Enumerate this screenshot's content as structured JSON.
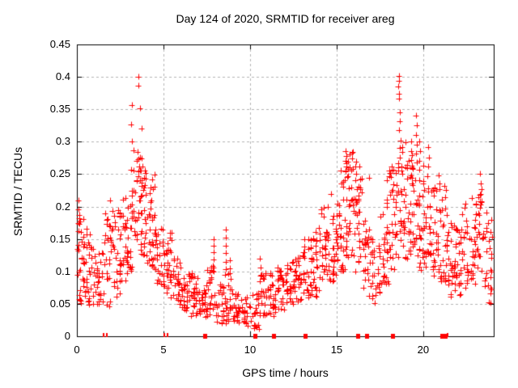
{
  "chart_data": {
    "type": "scatter",
    "title": "Day 124 of 2020, SRMTID for receiver areg",
    "xlabel": "GPS time / hours",
    "ylabel": "SRMTID / TECUs",
    "xlim": [
      0,
      24.07
    ],
    "ylim": [
      0,
      0.45
    ],
    "xticks": [
      "0",
      "5",
      "10",
      "15",
      "20"
    ],
    "xtick_values": [
      0,
      5,
      10,
      15,
      20
    ],
    "yticks": [
      "0",
      "0.05",
      "0.1",
      "0.15",
      "0.2",
      "0.25",
      "0.3",
      "0.35",
      "0.4",
      "0.45"
    ],
    "ytick_values": [
      0,
      0.05,
      0.1,
      0.15,
      0.2,
      0.25,
      0.3,
      0.35,
      0.4,
      0.45
    ],
    "grid": true,
    "legend": "none",
    "marker": "plus-cross",
    "marker_color": "#ff0000",
    "grid_color": "#b3b3b3",
    "axis_color": "#000000",
    "background_color": "#ffffff",
    "description": "Scatter of SRMTID vs GPS time; density envelope bins are [x_start(h), point_count, y_min, y_max] over 0.5 h bins; spike_points are notable individual high values; zero_squares and zero_ticks are red markers lying on the y=0 axis line.",
    "envelope_bins": [
      [
        0.0,
        34,
        0.05,
        0.19
      ],
      [
        0.5,
        30,
        0.04,
        0.17
      ],
      [
        1.0,
        26,
        0.05,
        0.13
      ],
      [
        1.5,
        28,
        0.04,
        0.19
      ],
      [
        2.0,
        30,
        0.06,
        0.2
      ],
      [
        2.5,
        30,
        0.08,
        0.22
      ],
      [
        3.0,
        32,
        0.1,
        0.26
      ],
      [
        3.5,
        36,
        0.12,
        0.28
      ],
      [
        4.0,
        34,
        0.1,
        0.25
      ],
      [
        4.5,
        30,
        0.08,
        0.17
      ],
      [
        5.0,
        28,
        0.06,
        0.16
      ],
      [
        5.5,
        26,
        0.05,
        0.12
      ],
      [
        6.0,
        26,
        0.04,
        0.1
      ],
      [
        6.5,
        26,
        0.03,
        0.1
      ],
      [
        7.0,
        24,
        0.03,
        0.08
      ],
      [
        7.5,
        26,
        0.03,
        0.12
      ],
      [
        8.0,
        24,
        0.02,
        0.08
      ],
      [
        8.5,
        26,
        0.02,
        0.12
      ],
      [
        9.0,
        24,
        0.02,
        0.07
      ],
      [
        9.5,
        22,
        0.01,
        0.06
      ],
      [
        10.0,
        22,
        0.01,
        0.07
      ],
      [
        10.5,
        24,
        0.03,
        0.1
      ],
      [
        11.0,
        24,
        0.03,
        0.1
      ],
      [
        11.5,
        26,
        0.04,
        0.11
      ],
      [
        12.0,
        26,
        0.05,
        0.12
      ],
      [
        12.5,
        26,
        0.05,
        0.13
      ],
      [
        13.0,
        28,
        0.06,
        0.15
      ],
      [
        13.5,
        28,
        0.06,
        0.17
      ],
      [
        14.0,
        30,
        0.08,
        0.2
      ],
      [
        14.5,
        30,
        0.08,
        0.22
      ],
      [
        15.0,
        34,
        0.1,
        0.26
      ],
      [
        15.5,
        36,
        0.12,
        0.285
      ],
      [
        16.0,
        32,
        0.1,
        0.27
      ],
      [
        16.5,
        28,
        0.06,
        0.18
      ],
      [
        17.0,
        26,
        0.05,
        0.15
      ],
      [
        17.5,
        28,
        0.08,
        0.22
      ],
      [
        18.0,
        30,
        0.1,
        0.27
      ],
      [
        18.5,
        36,
        0.12,
        0.3
      ],
      [
        19.0,
        32,
        0.12,
        0.28
      ],
      [
        19.5,
        30,
        0.1,
        0.26
      ],
      [
        20.0,
        32,
        0.1,
        0.27
      ],
      [
        20.5,
        30,
        0.08,
        0.24
      ],
      [
        21.0,
        30,
        0.08,
        0.23
      ],
      [
        21.5,
        28,
        0.06,
        0.18
      ],
      [
        22.0,
        28,
        0.06,
        0.21
      ],
      [
        22.5,
        28,
        0.08,
        0.2
      ],
      [
        23.0,
        28,
        0.1,
        0.23
      ],
      [
        23.5,
        26,
        0.05,
        0.2
      ]
    ],
    "spike_points": [
      [
        0.1,
        0.21
      ],
      [
        0.1,
        0.196
      ],
      [
        0.13,
        0.182
      ],
      [
        1.9,
        0.21
      ],
      [
        3.55,
        0.4
      ],
      [
        3.57,
        0.386
      ],
      [
        3.2,
        0.356
      ],
      [
        3.64,
        0.352
      ],
      [
        3.15,
        0.327
      ],
      [
        3.74,
        0.32
      ],
      [
        3.2,
        0.3
      ],
      [
        3.28,
        0.287
      ],
      [
        3.5,
        0.284
      ],
      [
        3.45,
        0.27
      ],
      [
        3.6,
        0.262
      ],
      [
        3.7,
        0.255
      ],
      [
        3.55,
        0.247
      ],
      [
        3.65,
        0.24
      ],
      [
        3.75,
        0.232
      ],
      [
        3.85,
        0.225
      ],
      [
        3.95,
        0.218
      ],
      [
        5.48,
        0.16
      ],
      [
        7.88,
        0.15
      ],
      [
        7.9,
        0.14
      ],
      [
        7.92,
        0.13
      ],
      [
        7.88,
        0.118
      ],
      [
        7.9,
        0.106
      ],
      [
        8.58,
        0.165
      ],
      [
        8.6,
        0.152
      ],
      [
        8.62,
        0.14
      ],
      [
        8.58,
        0.128
      ],
      [
        8.6,
        0.115
      ],
      [
        8.62,
        0.104
      ],
      [
        10.58,
        0.12
      ],
      [
        10.62,
        0.106
      ],
      [
        10.6,
        0.094
      ],
      [
        15.52,
        0.285
      ],
      [
        15.55,
        0.278
      ],
      [
        15.5,
        0.27
      ],
      [
        15.58,
        0.262
      ],
      [
        15.53,
        0.254
      ],
      [
        15.6,
        0.246
      ],
      [
        15.47,
        0.24
      ],
      [
        16.1,
        0.262
      ],
      [
        16.14,
        0.25
      ],
      [
        16.1,
        0.24
      ],
      [
        16.85,
        0.244
      ],
      [
        17.9,
        0.24
      ],
      [
        18.1,
        0.252
      ],
      [
        18.2,
        0.262
      ],
      [
        18.15,
        0.246
      ],
      [
        18.58,
        0.402
      ],
      [
        18.6,
        0.394
      ],
      [
        18.57,
        0.385
      ],
      [
        18.62,
        0.374
      ],
      [
        18.6,
        0.366
      ],
      [
        18.64,
        0.345
      ],
      [
        18.67,
        0.332
      ],
      [
        18.62,
        0.318
      ],
      [
        18.7,
        0.302
      ],
      [
        18.66,
        0.29
      ],
      [
        19.28,
        0.3
      ],
      [
        19.32,
        0.286
      ],
      [
        19.3,
        0.272
      ],
      [
        19.35,
        0.26
      ],
      [
        19.28,
        0.248
      ],
      [
        19.33,
        0.236
      ],
      [
        19.6,
        0.34
      ],
      [
        19.62,
        0.325
      ],
      [
        19.58,
        0.31
      ],
      [
        19.63,
        0.296
      ],
      [
        19.6,
        0.282
      ],
      [
        19.65,
        0.268
      ],
      [
        19.78,
        0.3
      ],
      [
        19.8,
        0.285
      ],
      [
        19.76,
        0.27
      ],
      [
        20.3,
        0.292
      ],
      [
        20.34,
        0.276
      ],
      [
        20.28,
        0.262
      ],
      [
        20.88,
        0.248
      ],
      [
        20.92,
        0.235
      ],
      [
        21.2,
        0.232
      ],
      [
        21.3,
        0.225
      ],
      [
        22.8,
        0.213
      ],
      [
        23.28,
        0.25
      ],
      [
        23.32,
        0.235
      ],
      [
        23.3,
        0.22
      ],
      [
        23.26,
        0.208
      ]
    ],
    "zero_squares": [
      7.38,
      10.28,
      11.36,
      13.18,
      16.21,
      16.73,
      18.22,
      21.1,
      21.25
    ],
    "zero_ticks": [
      1.55,
      1.75,
      5.05,
      5.23,
      21.42
    ]
  }
}
